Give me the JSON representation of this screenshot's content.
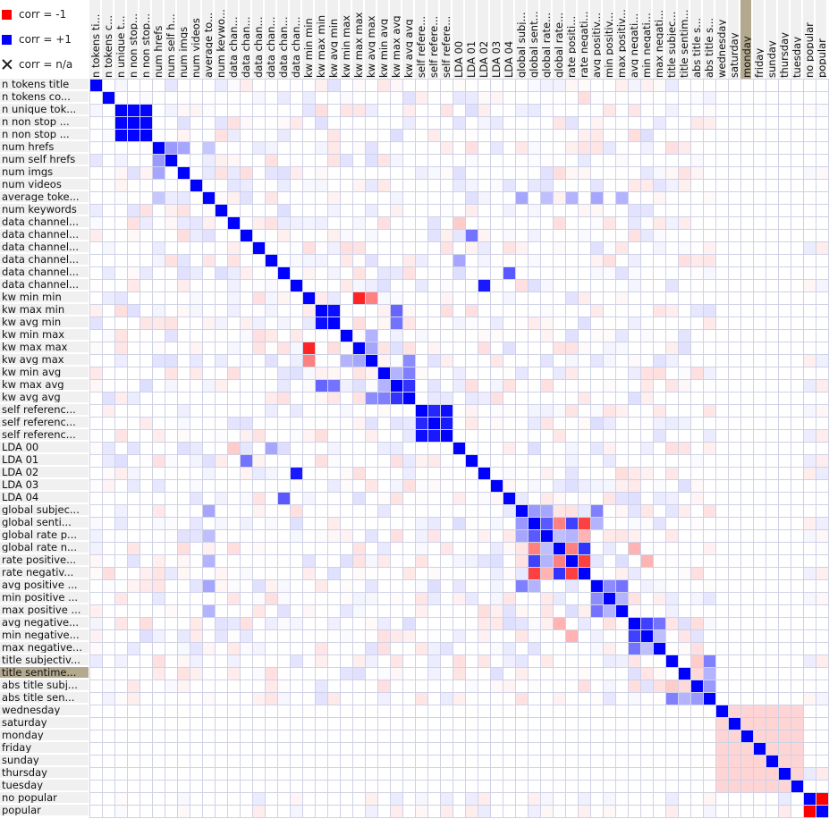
{
  "legend": {
    "neg_label": "corr = -1",
    "pos_label": "corr = +1",
    "na_label": "corr = n/a",
    "neg_color": "#ff0000",
    "pos_color": "#0000ff"
  },
  "selection": {
    "row": "title sentime...",
    "column": "monday"
  },
  "chart_data": {
    "type": "heatmap",
    "row_labels": [
      "n tokens title",
      "n tokens co...",
      "n unique tok...",
      "n non stop ...",
      "n non stop ...",
      "num hrefs",
      "num self hrefs",
      "num imgs",
      "num videos",
      "average toke...",
      "num keywords",
      "data channel...",
      "data channel...",
      "data channel...",
      "data channel...",
      "data channel...",
      "data channel...",
      "kw min min",
      "kw max min",
      "kw avg min",
      "kw min max",
      "kw max max",
      "kw avg max",
      "kw min avg",
      "kw max avg",
      "kw avg avg",
      "self referenc...",
      "self referenc...",
      "self referenc...",
      "LDA 00",
      "LDA 01",
      "LDA 02",
      "LDA 03",
      "LDA 04",
      "global subjec...",
      "global senti...",
      "global rate p...",
      "global rate n...",
      "rate positive...",
      "rate negativ...",
      "avg positive ...",
      "min positive ...",
      "max positive ...",
      "avg negative...",
      "min negative...",
      "max negative...",
      "title subjectiv...",
      "title sentime...",
      "abs title subj...",
      "abs title sen...",
      "wednesday",
      "saturday",
      "monday",
      "friday",
      "sunday",
      "thursday",
      "tuesday",
      "no popular",
      "popular"
    ],
    "column_labels": [
      "n tokens ti...",
      "n tokens c...",
      "n unique t...",
      "n non stop...",
      "n non stop...",
      "num hrefs",
      "num self h...",
      "num imgs",
      "num videos",
      "average to...",
      "num keywo...",
      "data chan...",
      "data chan...",
      "data chan...",
      "data chan...",
      "data chan...",
      "data chan...",
      "kw min min",
      "kw max min",
      "kw avg min",
      "kw min max",
      "kw max max",
      "kw avg max",
      "kw min avg",
      "kw max avg",
      "kw avg avg",
      "self refere...",
      "self refere...",
      "self refere...",
      "LDA 00",
      "LDA 01",
      "LDA 02",
      "LDA 03",
      "LDA 04",
      "global subj...",
      "global sent...",
      "global rate...",
      "global rate...",
      "rate positi...",
      "rate negati...",
      "avg positiv...",
      "min positiv...",
      "max positiv...",
      "avg negati...",
      "min negati...",
      "max negati...",
      "title subjec...",
      "title sentim...",
      "abs title s...",
      "abs title s...",
      "wednesday",
      "saturday",
      "monday",
      "friday",
      "sunday",
      "thursday",
      "tuesday",
      "no popular",
      "popular"
    ],
    "value_range": [
      -1,
      1
    ],
    "color_scale": {
      "negative": "#ff0000",
      "zero": "#ffffff",
      "positive": "#0000ff"
    },
    "strong_pairs": [
      [
        2,
        3,
        0.99
      ],
      [
        2,
        4,
        0.99
      ],
      [
        3,
        4,
        0.99
      ],
      [
        5,
        6,
        0.4
      ],
      [
        5,
        7,
        0.35
      ],
      [
        5,
        9,
        0.22
      ],
      [
        18,
        19,
        0.95
      ],
      [
        17,
        21,
        -0.86
      ],
      [
        17,
        22,
        -0.5
      ],
      [
        18,
        24,
        0.6
      ],
      [
        19,
        24,
        0.55
      ],
      [
        20,
        22,
        0.3
      ],
      [
        23,
        24,
        0.3
      ],
      [
        24,
        25,
        0.8
      ],
      [
        22,
        25,
        0.45
      ],
      [
        23,
        25,
        0.5
      ],
      [
        21,
        22,
        0.35
      ],
      [
        26,
        27,
        0.85
      ],
      [
        26,
        28,
        0.95
      ],
      [
        27,
        28,
        0.9
      ],
      [
        11,
        29,
        -0.2
      ],
      [
        12,
        30,
        0.55
      ],
      [
        16,
        31,
        0.9
      ],
      [
        15,
        33,
        0.65
      ],
      [
        14,
        29,
        0.35
      ],
      [
        34,
        35,
        0.4
      ],
      [
        34,
        36,
        0.35
      ],
      [
        35,
        36,
        0.65
      ],
      [
        35,
        37,
        -0.5
      ],
      [
        35,
        38,
        0.75
      ],
      [
        35,
        39,
        -0.75
      ],
      [
        36,
        37,
        0.25
      ],
      [
        36,
        38,
        0.3
      ],
      [
        36,
        39,
        -0.3
      ],
      [
        37,
        38,
        -0.5
      ],
      [
        37,
        39,
        0.8
      ],
      [
        38,
        39,
        -0.75
      ],
      [
        34,
        40,
        0.5
      ],
      [
        35,
        40,
        0.3
      ],
      [
        40,
        41,
        0.45
      ],
      [
        40,
        42,
        0.55
      ],
      [
        41,
        42,
        0.3
      ],
      [
        43,
        44,
        0.75
      ],
      [
        43,
        45,
        0.55
      ],
      [
        44,
        45,
        0.25
      ],
      [
        37,
        43,
        -0.3
      ],
      [
        38,
        44,
        -0.3
      ],
      [
        46,
        48,
        -0.2
      ],
      [
        46,
        49,
        0.5
      ],
      [
        47,
        49,
        0.3
      ],
      [
        48,
        49,
        0.4
      ],
      [
        47,
        48,
        -0.15
      ],
      [
        57,
        58,
        -1
      ],
      [
        9,
        34,
        0.35
      ],
      [
        9,
        40,
        0.35
      ],
      [
        9,
        42,
        0.3
      ],
      [
        9,
        36,
        0.25
      ],
      [
        9,
        38,
        0.3
      ]
    ]
  }
}
